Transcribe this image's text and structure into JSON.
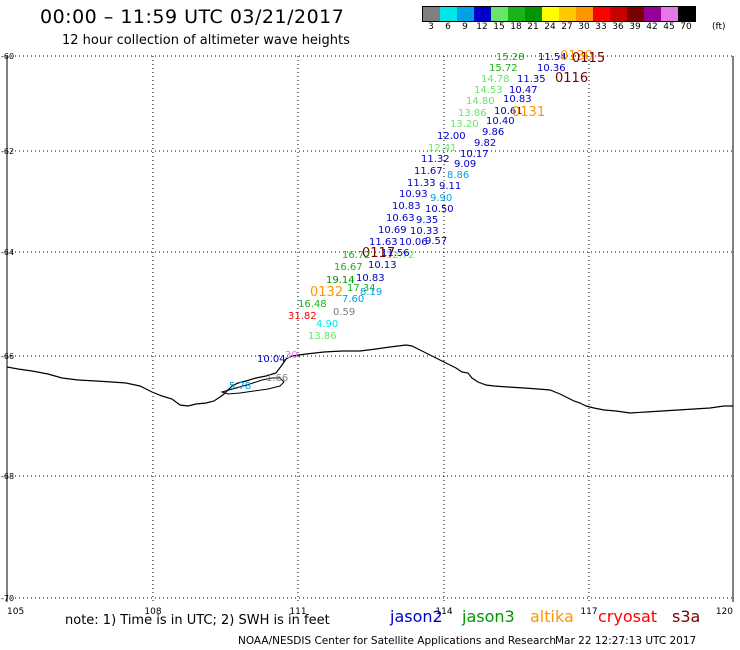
{
  "header": {
    "title": "00:00 – 11:59 UTC 03/21/2017",
    "subtitle": "12 hour collection of altimeter wave heights"
  },
  "legend": {
    "unit": "(ft)",
    "bins": [
      {
        "label": "3",
        "color": "#808080"
      },
      {
        "label": "6",
        "color": "#00e5e5"
      },
      {
        "label": "9",
        "color": "#00a0e6"
      },
      {
        "label": "12",
        "color": "#0000c8"
      },
      {
        "label": "15",
        "color": "#66e666"
      },
      {
        "label": "18",
        "color": "#18b418"
      },
      {
        "label": "21",
        "color": "#009600"
      },
      {
        "label": "24",
        "color": "#ffff00"
      },
      {
        "label": "27",
        "color": "#ffc800"
      },
      {
        "label": "30",
        "color": "#ff9600"
      },
      {
        "label": "33",
        "color": "#ff0000"
      },
      {
        "label": "36",
        "color": "#c80000"
      },
      {
        "label": "39",
        "color": "#780000"
      },
      {
        "label": "42",
        "color": "#960096"
      },
      {
        "label": "45",
        "color": "#e678e6"
      },
      {
        "label": "70",
        "color": "#000000"
      }
    ]
  },
  "axes": {
    "lon_ticks": [
      "105",
      "108",
      "111",
      "114",
      "117",
      "120"
    ],
    "lat_ticks": [
      "-60",
      "-62",
      "-64",
      "-66",
      "-68",
      "-70"
    ]
  },
  "wave_labels": [
    {
      "t": "15.28",
      "c": "#18b418"
    },
    {
      "t": "11.54",
      "c": "#0000c8"
    },
    {
      "t": "0130",
      "c": "#ff9600"
    },
    {
      "t": "0115",
      "c": "#780000"
    },
    {
      "t": "15.72",
      "c": "#18b418"
    },
    {
      "t": "10.36",
      "c": "#0000c8"
    },
    {
      "t": "14.78",
      "c": "#66e666"
    },
    {
      "t": "11.35",
      "c": "#0000c8"
    },
    {
      "t": "0116",
      "c": "#780000"
    },
    {
      "t": "14.53",
      "c": "#66e666"
    },
    {
      "t": "10.47",
      "c": "#0000c8"
    },
    {
      "t": "14.80",
      "c": "#66e666"
    },
    {
      "t": "10.83",
      "c": "#0000c8"
    },
    {
      "t": "13.86",
      "c": "#66e666"
    },
    {
      "t": "10.61",
      "c": "#0000c8"
    },
    {
      "t": "0131",
      "c": "#ff9600"
    },
    {
      "t": "13.20",
      "c": "#66e666"
    },
    {
      "t": "10.40",
      "c": "#0000c8"
    },
    {
      "t": "9.86",
      "c": "#0000c8"
    },
    {
      "t": "12.00",
      "c": "#0000c8"
    },
    {
      "t": "9.82",
      "c": "#0000c8"
    },
    {
      "t": "12.41",
      "c": "#66e666"
    },
    {
      "t": "10.17",
      "c": "#0000c8"
    },
    {
      "t": "11.32",
      "c": "#0000c8"
    },
    {
      "t": "9.09",
      "c": "#0000c8"
    },
    {
      "t": "11.67",
      "c": "#0000c8"
    },
    {
      "t": "8.86",
      "c": "#00a0e6"
    },
    {
      "t": "11.33",
      "c": "#0000c8"
    },
    {
      "t": "9.11",
      "c": "#0000c8"
    },
    {
      "t": "10.93",
      "c": "#0000c8"
    },
    {
      "t": "9.90",
      "c": "#00a0e6"
    },
    {
      "t": "10.83",
      "c": "#0000c8"
    },
    {
      "t": "10.50",
      "c": "#0000c8"
    },
    {
      "t": "10.63",
      "c": "#0000c8"
    },
    {
      "t": "9.35",
      "c": "#0000c8"
    },
    {
      "t": "10.69",
      "c": "#0000c8"
    },
    {
      "t": "10.33",
      "c": "#0000c8"
    },
    {
      "t": "11.63",
      "c": "#0000c8"
    },
    {
      "t": "10.06",
      "c": "#0000c8"
    },
    {
      "t": "0117",
      "c": "#780000"
    },
    {
      "t": "12.72",
      "c": "#66e666"
    },
    {
      "t": "9.57",
      "c": "#0000c8"
    },
    {
      "t": "16.72",
      "c": "#18b418"
    },
    {
      "t": "11.56",
      "c": "#0000c8"
    },
    {
      "t": "16.67",
      "c": "#18b418"
    },
    {
      "t": "10.13",
      "c": "#0000c8"
    },
    {
      "t": "19.14",
      "c": "#009600"
    },
    {
      "t": "10.83",
      "c": "#0000c8"
    },
    {
      "t": "0132",
      "c": "#ff9600"
    },
    {
      "t": "17.34",
      "c": "#18b418"
    },
    {
      "t": "8.19",
      "c": "#00a0e6"
    },
    {
      "t": "16.48",
      "c": "#18b418"
    },
    {
      "t": "7.60",
      "c": "#00a0e6"
    },
    {
      "t": "31.82",
      "c": "#ff0000"
    },
    {
      "t": "0.59",
      "c": "#808080"
    },
    {
      "t": "4.90",
      "c": "#00e5e5"
    },
    {
      "t": "13.86",
      "c": "#66e666"
    },
    {
      "t": "10.04",
      "c": "#0000c8"
    },
    {
      "t": "30.",
      "c": "#e678e6"
    },
    {
      "t": "5.78",
      "c": "#00a0e6"
    },
    {
      "t": "1.66",
      "c": "#808080"
    }
  ],
  "footer": {
    "note": "note: 1) Time is in UTC; 2) SWH is in feet",
    "satellites": [
      {
        "name": "jason2",
        "color": "#0000c8"
      },
      {
        "name": "jason3",
        "color": "#009600"
      },
      {
        "name": "altika",
        "color": "#ff9600"
      },
      {
        "name": "cryosat",
        "color": "#ff0000"
      },
      {
        "name": "s3a",
        "color": "#780000"
      }
    ],
    "credit": "NOAA/NESDIS Center for Satellite Applications and Research",
    "timestamp": "Mar 22 12:27:13 UTC 2017"
  }
}
